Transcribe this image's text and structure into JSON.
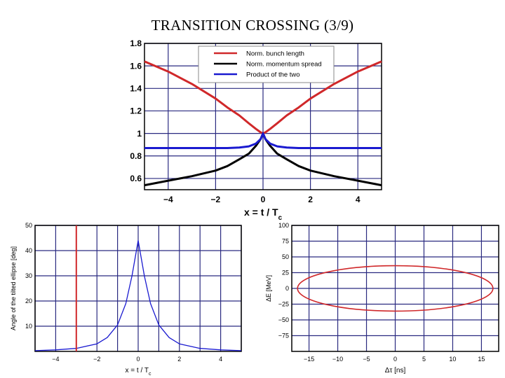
{
  "page": {
    "title": "TRANSITION CROSSING (3/9)"
  },
  "chart_data": [
    {
      "type": "line",
      "title": "",
      "xlabel": "x = t / T",
      "xlabel_subscript": "c",
      "ylabel": "",
      "xlim": [
        -5,
        5
      ],
      "ylim": [
        0.5,
        1.8
      ],
      "xticks": [
        -4,
        -2,
        0,
        2,
        4
      ],
      "yticks": [
        0.6,
        0.8,
        1,
        1.2,
        1.4,
        1.6,
        1.8
      ],
      "xtick_labels": [
        "−4",
        "−2",
        "0",
        "2",
        "4"
      ],
      "ytick_labels": [
        "0.6",
        "0.8",
        "1",
        "1.2",
        "1.4",
        "1.6",
        "1.8"
      ],
      "grid": true,
      "legend": "top-center",
      "x": [
        -5,
        -4,
        -3,
        -2,
        -1.5,
        -1,
        -0.6,
        -0.3,
        -0.1,
        0,
        0.1,
        0.3,
        0.6,
        1,
        1.5,
        2,
        3,
        4,
        5
      ],
      "series": [
        {
          "name": "Norm. bunch length",
          "color": "#d0282a",
          "values": [
            1.64,
            1.55,
            1.44,
            1.31,
            1.23,
            1.16,
            1.09,
            1.04,
            1.01,
            1.0,
            1.01,
            1.04,
            1.09,
            1.16,
            1.23,
            1.31,
            1.44,
            1.55,
            1.64
          ]
        },
        {
          "name": "Norm. momentum spread",
          "color": "#000000",
          "values": [
            0.54,
            0.58,
            0.62,
            0.67,
            0.71,
            0.77,
            0.82,
            0.89,
            0.95,
            1.0,
            0.95,
            0.89,
            0.82,
            0.77,
            0.71,
            0.67,
            0.62,
            0.58,
            0.54
          ]
        },
        {
          "name": "Product of the two",
          "color": "#1a1ad0",
          "values": [
            0.87,
            0.87,
            0.87,
            0.87,
            0.87,
            0.875,
            0.885,
            0.91,
            0.95,
            1.0,
            0.95,
            0.91,
            0.885,
            0.875,
            0.87,
            0.87,
            0.87,
            0.87,
            0.87
          ]
        }
      ]
    },
    {
      "type": "line",
      "title": "",
      "xlabel": "x = t / T",
      "xlabel_subscript": "c",
      "ylabel": "Angle of the tilted ellipse [deg]",
      "xlim": [
        -5,
        5
      ],
      "ylim": [
        0,
        50
      ],
      "xticks": [
        -4,
        -2,
        0,
        2,
        4
      ],
      "yticks": [
        10,
        20,
        30,
        40,
        50
      ],
      "xtick_labels": [
        "−4",
        "−2",
        "0",
        "2",
        "4"
      ],
      "ytick_labels": [
        "10",
        "20",
        "30",
        "40",
        "50"
      ],
      "grid": true,
      "vline": {
        "x": -3,
        "color": "#d0282a"
      },
      "x": [
        -5,
        -4,
        -3,
        -2,
        -1.5,
        -1,
        -0.6,
        -0.3,
        0,
        0.3,
        0.6,
        1,
        1.5,
        2,
        3,
        4,
        5
      ],
      "series": [
        {
          "color": "#1a1ad0",
          "values": [
            0.3,
            0.6,
            1.2,
            3,
            5.5,
            10.5,
            19,
            30,
            44,
            30,
            19,
            10.5,
            5.5,
            3,
            1.2,
            0.6,
            0.3
          ]
        }
      ]
    },
    {
      "type": "line",
      "title": "",
      "xlabel": "Δτ [ns]",
      "ylabel": "ΔE [MeV]",
      "xlim": [
        -18,
        18
      ],
      "ylim": [
        -100,
        100
      ],
      "xticks": [
        -15,
        -10,
        -5,
        0,
        5,
        10,
        15
      ],
      "yticks": [
        -75,
        -50,
        -25,
        0,
        25,
        50,
        75,
        100
      ],
      "xtick_labels": [
        "−15",
        "−10",
        "−5",
        "0",
        "5",
        "10",
        "15"
      ],
      "ytick_labels": [
        "−75",
        "−50",
        "−25",
        "0",
        "25",
        "50",
        "75",
        "100"
      ],
      "grid": true,
      "ellipse": {
        "center": [
          0,
          0
        ],
        "semi_x": 17,
        "semi_y": 36,
        "color": "#d0282a"
      }
    }
  ]
}
